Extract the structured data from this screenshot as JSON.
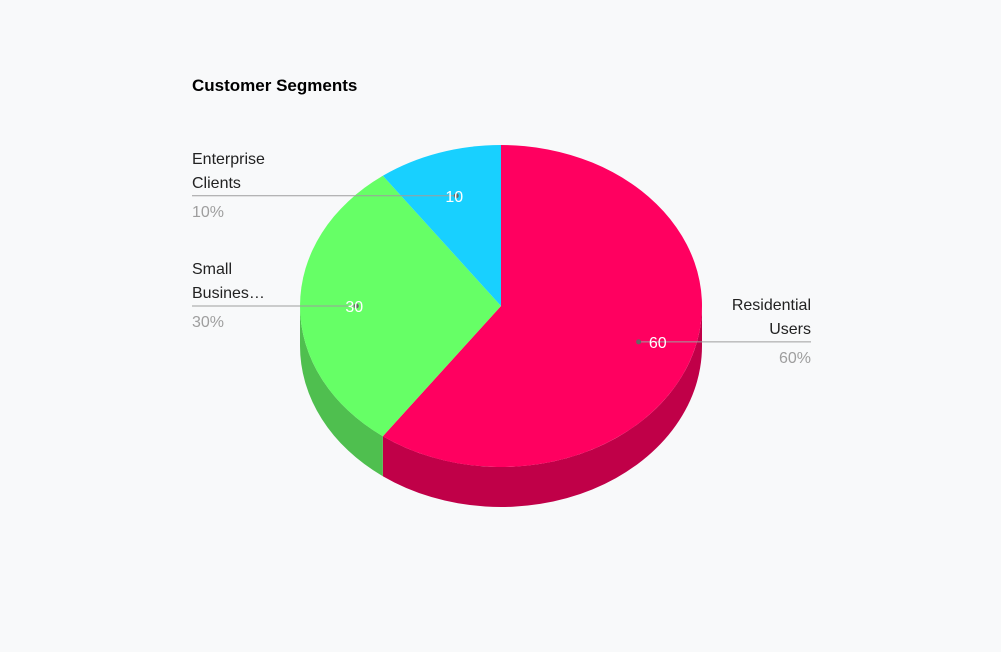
{
  "chart_data": {
    "type": "pie",
    "title": "Customer Segments",
    "three_d": true,
    "slices": [
      {
        "label_lines": [
          "Residential",
          "Users"
        ],
        "value": 60,
        "value_text": "60",
        "percent_text": "60%",
        "color": "#ff0060",
        "side_color": "#c00048"
      },
      {
        "label_lines": [
          "Small",
          "Busines…"
        ],
        "value": 30,
        "value_text": "30",
        "percent_text": "30%",
        "color": "#66ff66",
        "side_color": "#4fbf4f"
      },
      {
        "label_lines": [
          "Enterprise",
          "Clients"
        ],
        "value": 10,
        "value_text": "10",
        "percent_text": "10%",
        "color": "#18d0ff",
        "side_color": "#12a0c8"
      }
    ],
    "leader_line_color": "#9e9e9e"
  }
}
